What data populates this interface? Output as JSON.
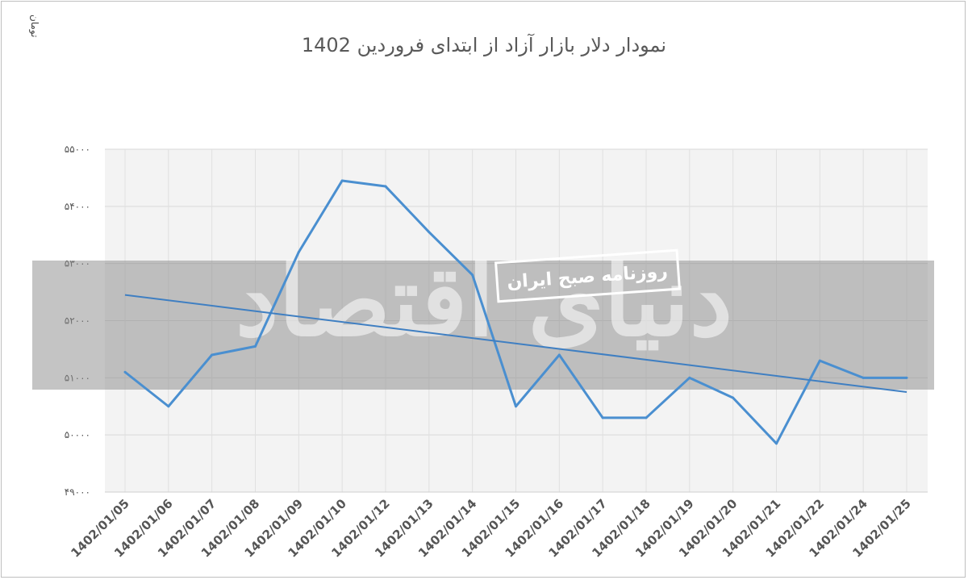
{
  "chart_data": {
    "type": "line",
    "title": "نمودار دلار بازار آزاد از ابتدای فروردین 1402",
    "ylabel": "تومان",
    "xlabel": "",
    "ylim": [
      49000,
      55000
    ],
    "y_ticks": [
      49000,
      50000,
      51000,
      52000,
      53000,
      54000,
      55000
    ],
    "y_tick_labels": [
      "۴۹۰۰۰",
      "۵۰۰۰۰",
      "۵۱۰۰۰",
      "۵۲۰۰۰",
      "۵۳۰۰۰",
      "۵۴۰۰۰",
      "۵۵۰۰۰"
    ],
    "categories": [
      "1402/01/05",
      "1402/01/06",
      "1402/01/07",
      "1402/01/08",
      "1402/01/09",
      "1402/01/10",
      "1402/01/12",
      "1402/01/13",
      "1402/01/14",
      "1402/01/15",
      "1402/01/16",
      "1402/01/17",
      "1402/01/18",
      "1402/01/19",
      "1402/01/20",
      "1402/01/21",
      "1402/01/22",
      "1402/01/24",
      "1402/01/25"
    ],
    "series": [
      {
        "values": [
          51100,
          50500,
          51400,
          51550,
          53200,
          54450,
          54350,
          53550,
          52800,
          50500,
          51400,
          50300,
          50300,
          51000,
          50650,
          49850,
          51300,
          51000,
          51000
        ]
      }
    ],
    "trendline": {
      "start": 52450,
      "end": 50750
    },
    "grid": true,
    "legend": "none",
    "colors": {
      "line": "#4a8fd0",
      "trend": "#3f7fc2",
      "grid": "#d9d9d9",
      "band": "#8a8a8a"
    }
  },
  "watermark": {
    "publisher": "روزنامه صبح ایران",
    "brand": "دنیای اقتصاد"
  }
}
